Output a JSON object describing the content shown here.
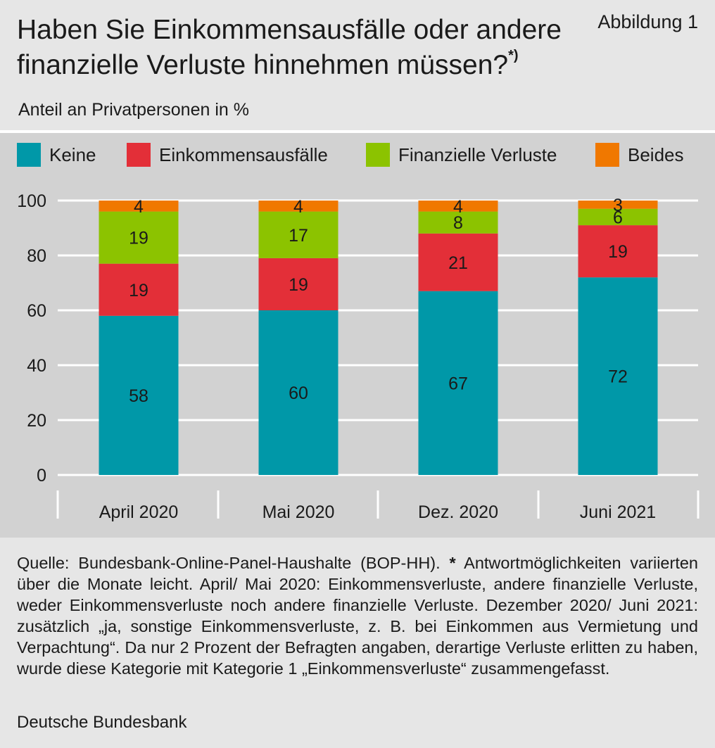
{
  "title": "Haben Sie Einkommensausfälle oder andere finanzielle Verluste hinnehmen müssen?",
  "title_footnote_mark": "*)",
  "figure_label": "Abbildung 1",
  "subtitle": "Anteil an Privatpersonen in %",
  "source_text": "Quelle: Bundesbank-Online-Panel-Haushalte (BOP-HH). * Antwortmöglichkeiten variierten über die Monate leicht. April/ Mai 2020: Einkommensverluste, andere finanzielle Verluste, weder Einkommensverluste noch andere finanzielle Verluste. Dezember 2020/ Juni 2021: zusätzlich „ja, sonstige Einkommensverluste, z. B. bei Einkommen aus Vermietung und Verpachtung“. Da nur 2 Prozent der Befragten angaben, derartige Verluste erlitten zu haben, wurde diese Kategorie mit Kategorie 1 „Einkommensverluste“ zusammengefasst.",
  "publisher": "Deutsche Bundesbank",
  "colors": {
    "Keine": "#0098a8",
    "Einkommensausfälle": "#e32f38",
    "Finanzielle Verluste": "#8cc300",
    "Beides": "#f07800",
    "background": "#e6e6e6",
    "plot_background": "#d2d2d2",
    "gridline": "#ffffff"
  },
  "chart_data": {
    "type": "bar",
    "stacked": true,
    "categories": [
      "April 2020",
      "Mai 2020",
      "Dez. 2020",
      "Juni 2021"
    ],
    "series": [
      {
        "name": "Keine",
        "values": [
          58,
          60,
          67,
          72
        ]
      },
      {
        "name": "Einkommensausfälle",
        "values": [
          19,
          19,
          21,
          19
        ]
      },
      {
        "name": "Finanzielle Verluste",
        "values": [
          19,
          17,
          8,
          6
        ]
      },
      {
        "name": "Beides",
        "values": [
          4,
          4,
          4,
          3
        ]
      }
    ],
    "ylim": [
      0,
      100
    ],
    "yticks": [
      0,
      20,
      40,
      60,
      80,
      100
    ],
    "grid": true,
    "legend_position": "top",
    "data_labels": true
  }
}
